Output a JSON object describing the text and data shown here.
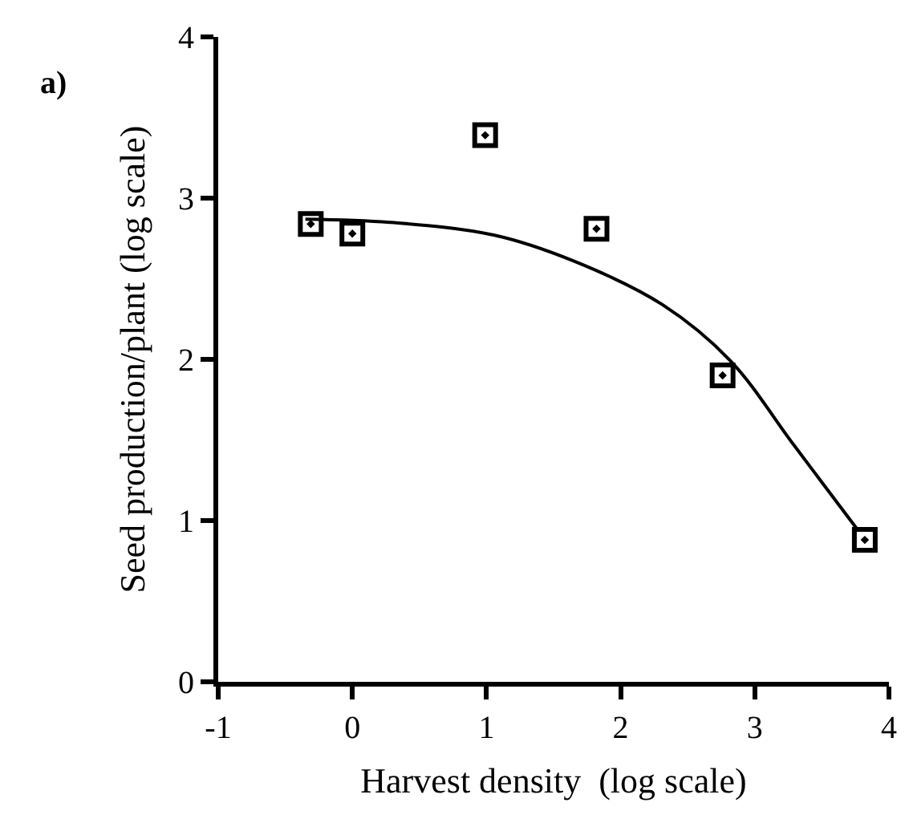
{
  "chart_data": {
    "type": "scatter",
    "xlabel": "Harvest density  (log scale)",
    "ylabel": "Seed production/plant (log scale)",
    "annotations": [
      "a)"
    ],
    "xlim": [
      -1,
      4
    ],
    "ylim": [
      0,
      4
    ],
    "xticks": [
      -1,
      0,
      1,
      2,
      3,
      4
    ],
    "yticks": [
      0,
      1,
      2,
      3,
      4
    ],
    "grid": false,
    "marker": "square",
    "series": [
      {
        "color": "#000000",
        "x": [
          -0.31,
          0.0,
          0.99,
          1.82,
          2.76,
          3.82
        ],
        "values": [
          2.84,
          2.78,
          3.39,
          2.81,
          1.9,
          0.88
        ]
      },
      {
        "type": "line",
        "color": "#000000",
        "marker": "none",
        "line_style": "solid",
        "x": [
          -0.35,
          0.28,
          1.06,
          1.65,
          2.31,
          2.82,
          3.29,
          3.76
        ],
        "values": [
          2.87,
          2.85,
          2.77,
          2.61,
          2.34,
          1.99,
          1.47,
          0.95
        ]
      }
    ]
  }
}
